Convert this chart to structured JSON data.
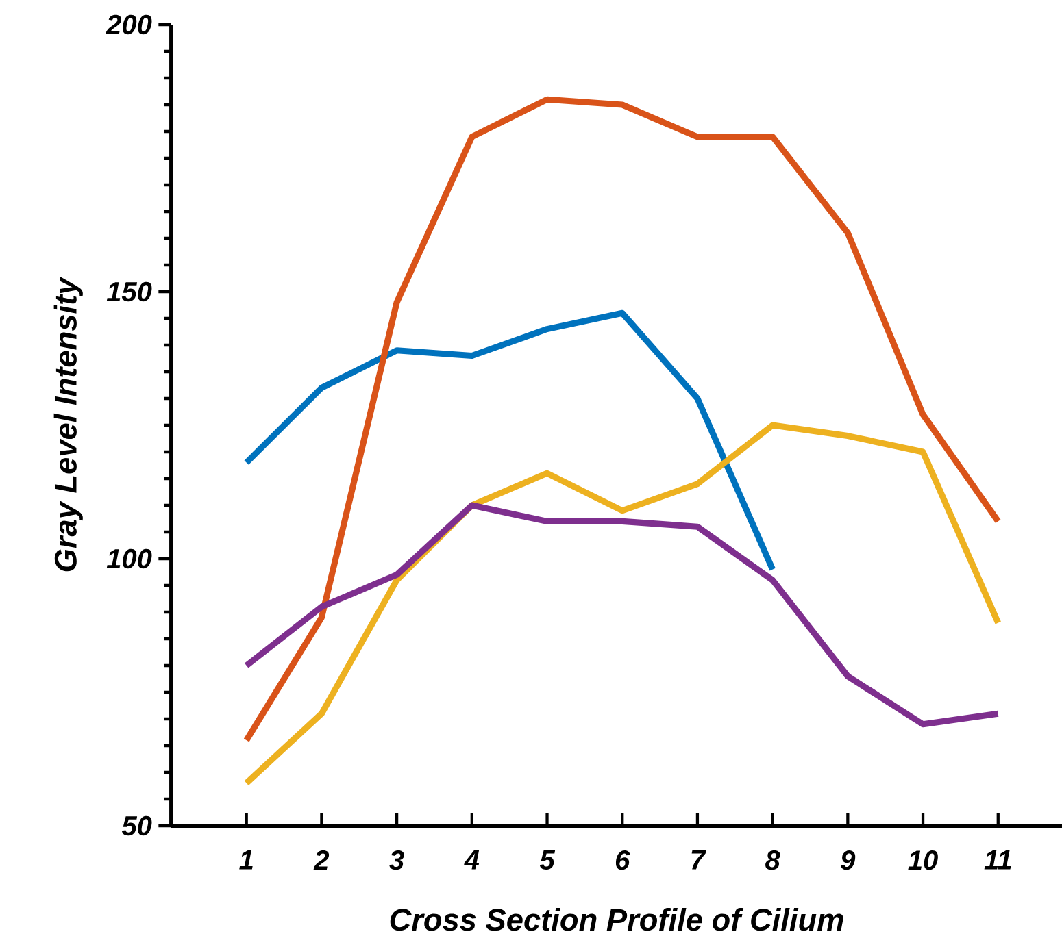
{
  "chart_data": {
    "type": "line",
    "xlabel": "Cross Section Profile of Cilium",
    "ylabel": "Gray Level Intensity",
    "x": [
      1,
      2,
      3,
      4,
      5,
      6,
      7,
      8,
      9,
      10,
      11
    ],
    "xlim": [
      0,
      11.85
    ],
    "xticks": [
      1,
      2,
      3,
      4,
      5,
      6,
      7,
      8,
      9,
      10,
      11
    ],
    "ylim": [
      50,
      200
    ],
    "yticks": [
      50,
      100,
      150,
      200
    ],
    "grid": false,
    "marker": "none",
    "line_style": "solid",
    "series": [
      {
        "color": "#0072bd",
        "values": [
          118,
          132,
          139,
          138,
          143,
          146,
          130,
          98,
          null,
          null,
          null
        ]
      },
      {
        "color": "#d95319",
        "values": [
          66,
          89,
          148,
          179,
          186,
          185,
          179,
          179,
          161,
          127,
          107
        ]
      },
      {
        "color": "#edb120",
        "values": [
          58,
          71,
          96,
          110,
          116,
          109,
          114,
          125,
          123,
          120,
          88
        ]
      },
      {
        "color": "#7e2f8e",
        "values": [
          80,
          91,
          97,
          110,
          107,
          107,
          106,
          96,
          78,
          69,
          71
        ]
      }
    ]
  }
}
